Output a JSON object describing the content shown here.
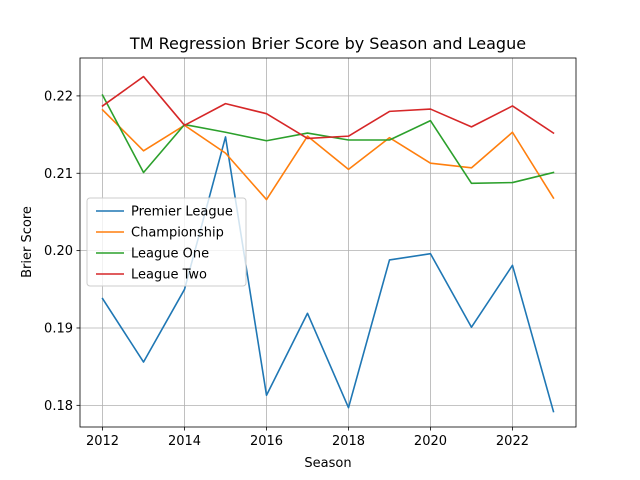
{
  "chart_data": {
    "type": "line",
    "title": "TM Regression Brier Score by Season and League",
    "xlabel": "Season",
    "ylabel": "Brier Score",
    "x": [
      2012,
      2013,
      2014,
      2015,
      2016,
      2017,
      2018,
      2019,
      2020,
      2021,
      2022,
      2023
    ],
    "xlim": [
      2011.45,
      2023.55
    ],
    "ylim": [
      0.1772,
      0.2249
    ],
    "xticks": [
      2012,
      2014,
      2016,
      2018,
      2020,
      2022
    ],
    "xtick_labels": [
      "2012",
      "2014",
      "2016",
      "2018",
      "2020",
      "2022"
    ],
    "yticks": [
      0.18,
      0.19,
      0.2,
      0.21,
      0.22
    ],
    "ytick_labels": [
      "0.18",
      "0.19",
      "0.20",
      "0.21",
      "0.22"
    ],
    "grid": true,
    "legend_position": "center-left",
    "series": [
      {
        "name": "Premier League",
        "color": "#1f77b4",
        "values": [
          0.1938,
          0.1856,
          0.195,
          0.2147,
          0.1813,
          0.1919,
          0.1797,
          0.1988,
          0.1996,
          0.1901,
          0.1981,
          0.1792
        ]
      },
      {
        "name": "Championship",
        "color": "#ff7f0e",
        "values": [
          0.2182,
          0.2129,
          0.2162,
          0.2126,
          0.2066,
          0.2148,
          0.2105,
          0.2146,
          0.2113,
          0.2107,
          0.2153,
          0.2068
        ]
      },
      {
        "name": "League One",
        "color": "#2ca02c",
        "values": [
          0.2201,
          0.2101,
          0.2163,
          0.2153,
          0.2142,
          0.2152,
          0.2143,
          0.2143,
          0.2168,
          0.2087,
          0.2088,
          0.2101
        ]
      },
      {
        "name": "League Two",
        "color": "#d62728",
        "values": [
          0.2187,
          0.2225,
          0.2162,
          0.219,
          0.2177,
          0.2145,
          0.2148,
          0.218,
          0.2183,
          0.216,
          0.2187,
          0.2152
        ]
      }
    ]
  }
}
